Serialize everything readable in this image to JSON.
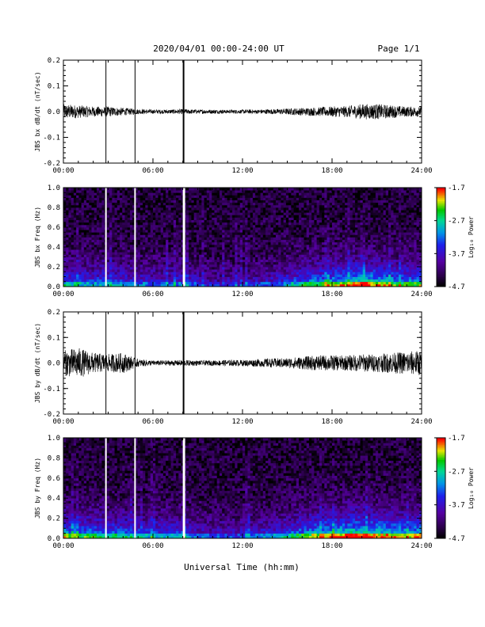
{
  "header": {
    "title": "2020/04/01  00:00-24:00 UT",
    "page": "Page 1/1"
  },
  "xlabel": "Universal Time (hh:mm)",
  "colors": {
    "waveform": "#000000",
    "spec_bg": "#2a0a55",
    "gap": "#ffffff"
  },
  "chart_data": [
    {
      "type": "line",
      "title": "",
      "ylabel": "JBS bx dB/dt (nT/sec)",
      "xlim_hours": [
        0,
        24
      ],
      "ylim": [
        -0.2,
        0.2
      ],
      "xticks": [
        "00:00",
        "06:00",
        "12:00",
        "18:00",
        "24:00"
      ],
      "yticks": [
        "-0.2",
        "-0.1",
        "0.0",
        "0.1",
        "0.2"
      ],
      "series": [
        {
          "x_hours": [
            0,
            1,
            2,
            3,
            4,
            5,
            6,
            7,
            8,
            9,
            10,
            11,
            12,
            13,
            14,
            15,
            16,
            17,
            18,
            19,
            20,
            21,
            22,
            23,
            24
          ],
          "amplitude": [
            0.03,
            0.025,
            0.02,
            0.02,
            0.015,
            0.01,
            0.008,
            0.008,
            0.01,
            0.008,
            0.008,
            0.007,
            0.008,
            0.008,
            0.01,
            0.012,
            0.015,
            0.017,
            0.02,
            0.022,
            0.03,
            0.03,
            0.025,
            0.02,
            0.02
          ]
        }
      ],
      "spikes_hours": [
        2.85,
        4.8,
        8.05
      ],
      "spike_range": [
        -0.2,
        0.2
      ]
    },
    {
      "type": "heatmap",
      "ylabel": "JBS bx Freq (Hz)",
      "xlim_hours": [
        0,
        24
      ],
      "ylim": [
        0,
        1.0
      ],
      "xticks": [
        "00:00",
        "06:00",
        "12:00",
        "18:00",
        "24:00"
      ],
      "yticks": [
        "0.0",
        "0.2",
        "0.4",
        "0.6",
        "0.8",
        "1.0"
      ],
      "colorbar": {
        "label": "Log₁₀ Power",
        "ticks": [
          "-1.7",
          "-2.7",
          "-3.7",
          "-4.7"
        ],
        "range": [
          -4.7,
          -1.7
        ]
      },
      "gaps_hours": [
        2.85,
        4.8,
        8.05
      ],
      "activity": [
        0.6,
        0.55,
        0.5,
        0.55,
        0.5,
        0.45,
        0.4,
        0.4,
        0.45,
        0.35,
        0.3,
        0.3,
        0.3,
        0.35,
        0.4,
        0.5,
        0.6,
        0.7,
        0.75,
        0.85,
        0.9,
        0.85,
        0.75,
        0.7,
        0.7
      ]
    },
    {
      "type": "line",
      "title": "",
      "ylabel": "JBS by dB/dt (nT/sec)",
      "xlim_hours": [
        0,
        24
      ],
      "ylim": [
        -0.2,
        0.2
      ],
      "xticks": [
        "00:00",
        "06:00",
        "12:00",
        "18:00",
        "24:00"
      ],
      "yticks": [
        "-0.2",
        "-0.1",
        "0.0",
        "0.1",
        "0.2"
      ],
      "series": [
        {
          "x_hours": [
            0,
            1,
            2,
            3,
            4,
            5,
            6,
            7,
            8,
            9,
            10,
            11,
            12,
            13,
            14,
            15,
            16,
            17,
            18,
            19,
            20,
            21,
            22,
            23,
            24
          ],
          "amplitude": [
            0.05,
            0.06,
            0.04,
            0.035,
            0.04,
            0.015,
            0.01,
            0.01,
            0.012,
            0.01,
            0.01,
            0.012,
            0.012,
            0.015,
            0.018,
            0.02,
            0.025,
            0.03,
            0.03,
            0.03,
            0.035,
            0.035,
            0.04,
            0.045,
            0.05
          ]
        }
      ],
      "spikes_hours": [
        2.85,
        4.8,
        8.05
      ],
      "spike_range": [
        -0.2,
        0.2
      ]
    },
    {
      "type": "heatmap",
      "ylabel": "JBS by Freq (Hz)",
      "xlim_hours": [
        0,
        24
      ],
      "ylim": [
        0,
        1.0
      ],
      "xticks": [
        "00:00",
        "06:00",
        "12:00",
        "18:00",
        "24:00"
      ],
      "yticks": [
        "0.0",
        "0.2",
        "0.4",
        "0.6",
        "0.8",
        "1.0"
      ],
      "colorbar": {
        "label": "Log₁₀ Power",
        "ticks": [
          "-1.7",
          "-2.7",
          "-3.7",
          "-4.7"
        ],
        "range": [
          -4.7,
          -1.7
        ]
      },
      "gaps_hours": [
        2.85,
        4.8,
        8.05
      ],
      "activity": [
        0.75,
        0.7,
        0.65,
        0.65,
        0.6,
        0.55,
        0.5,
        0.55,
        0.55,
        0.4,
        0.35,
        0.35,
        0.35,
        0.4,
        0.45,
        0.55,
        0.7,
        0.8,
        0.85,
        0.9,
        0.95,
        0.9,
        0.85,
        0.8,
        0.8
      ]
    }
  ]
}
